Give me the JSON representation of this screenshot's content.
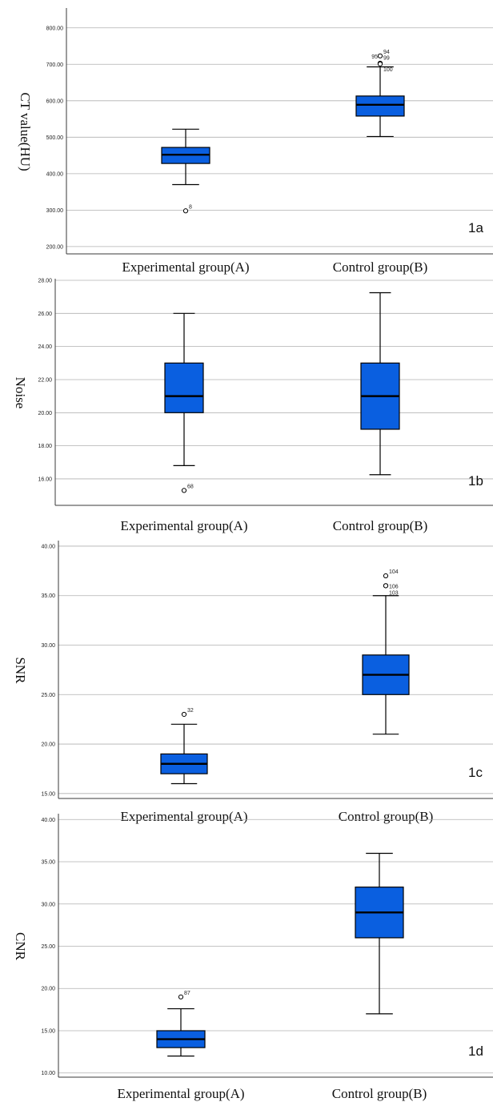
{
  "chart_data": [
    {
      "type": "box",
      "panel_label": "1a",
      "ylabel": "CT value(HU)",
      "ylim": [
        180,
        850
      ],
      "yticks": [
        200,
        300,
        400,
        500,
        600,
        700,
        800
      ],
      "ytick_labels": [
        "200.00",
        "300.00",
        "400.00",
        "500.00",
        "600.00",
        "700.00",
        "800.00"
      ],
      "grid": true,
      "categories": [
        "Experimental group(A)",
        "Control group(B)"
      ],
      "boxes": [
        {
          "whisker_low": 370,
          "q1": 428,
          "median": 452,
          "q3": 472,
          "whisker_high": 522,
          "outliers": [
            {
              "value": 298,
              "label": "8"
            }
          ]
        },
        {
          "whisker_low": 502,
          "q1": 558,
          "median": 589,
          "q3": 613,
          "whisker_high": 693,
          "outliers": [
            {
              "value": 723,
              "label": "94"
            },
            {
              "value": 703,
              "label": "95"
            },
            {
              "value": 702,
              "label": "99"
            },
            {
              "value": 701,
              "label": "100"
            }
          ]
        }
      ]
    },
    {
      "type": "box",
      "panel_label": "1b",
      "ylabel": "Noise",
      "ylim": [
        14.4,
        28.0
      ],
      "yticks": [
        16,
        18,
        20,
        22,
        24,
        26,
        28
      ],
      "ytick_labels": [
        "16.00",
        "18.00",
        "20.00",
        "22.00",
        "24.00",
        "26.00",
        "28.00"
      ],
      "grid": true,
      "categories": [
        "Experimental group(A)",
        "Control group(B)"
      ],
      "boxes": [
        {
          "whisker_low": 16.8,
          "q1": 20.0,
          "median": 21.0,
          "q3": 23.0,
          "whisker_high": 26.0,
          "outliers": [
            {
              "value": 15.3,
              "label": "68"
            }
          ]
        },
        {
          "whisker_low": 16.25,
          "q1": 19.0,
          "median": 21.0,
          "q3": 23.0,
          "whisker_high": 27.25,
          "outliers": []
        }
      ]
    },
    {
      "type": "box",
      "panel_label": "1c",
      "ylabel": "SNR",
      "ylim": [
        14.5,
        40.4
      ],
      "yticks": [
        15,
        20,
        25,
        30,
        35,
        40
      ],
      "ytick_labels": [
        "15.00",
        "20.00",
        "25.00",
        "30.00",
        "35.00",
        "40.00"
      ],
      "grid": true,
      "categories": [
        "Experimental group(A)",
        "Control group(B)"
      ],
      "boxes": [
        {
          "whisker_low": 16.0,
          "q1": 17.0,
          "median": 18.0,
          "q3": 19.0,
          "whisker_high": 22.0,
          "outliers": [
            {
              "value": 23.0,
              "label": "32"
            }
          ]
        },
        {
          "whisker_low": 21.0,
          "q1": 25.0,
          "median": 27.0,
          "q3": 29.0,
          "whisker_high": 35.0,
          "outliers": [
            {
              "value": 37.0,
              "label": "104"
            },
            {
              "value": 36.0,
              "label": "106"
            },
            {
              "value": 36.0,
              "label": "103"
            }
          ]
        }
      ]
    },
    {
      "type": "box",
      "panel_label": "1d",
      "ylabel": "CNR",
      "ylim": [
        9.5,
        40.5
      ],
      "yticks": [
        10,
        15,
        20,
        25,
        30,
        35,
        40
      ],
      "ytick_labels": [
        "10.00",
        "15.00",
        "20.00",
        "25.00",
        "30.00",
        "35.00",
        "40.00"
      ],
      "grid": true,
      "categories": [
        "Experimental group(A)",
        "Control group(B)"
      ],
      "boxes": [
        {
          "whisker_low": 12.0,
          "q1": 13.0,
          "median": 14.0,
          "q3": 15.0,
          "whisker_high": 17.6,
          "outliers": [
            {
              "value": 19.0,
              "label": "87"
            }
          ]
        },
        {
          "whisker_low": 17.0,
          "q1": 26.0,
          "median": 29.0,
          "q3": 32.0,
          "whisker_high": 36.0,
          "outliers": []
        }
      ]
    }
  ],
  "colors": {
    "box_fill": "#0a5fe0",
    "box_stroke": "#000000",
    "grid": "#b0b0b0",
    "axis": "#3a3a3a"
  }
}
